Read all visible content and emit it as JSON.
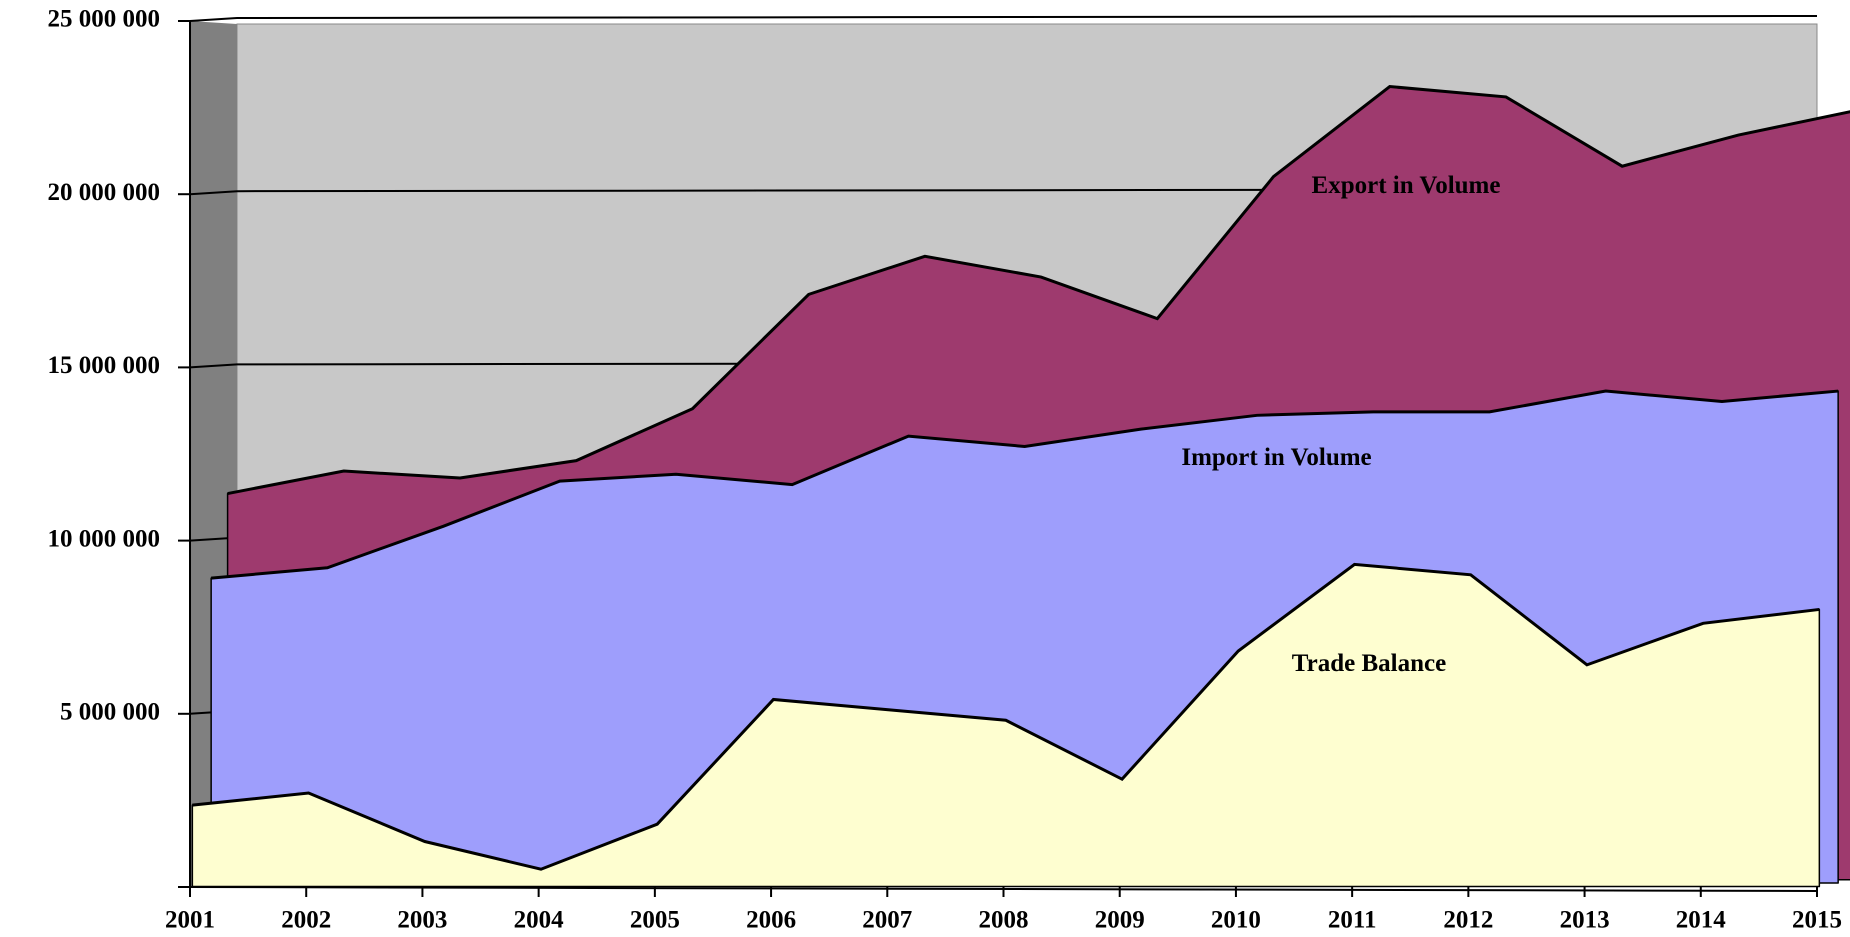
{
  "chart_data": {
    "type": "area3d",
    "categories": [
      "2001",
      "2002",
      "2003",
      "2004",
      "2005",
      "2006",
      "2007",
      "2008",
      "2009",
      "2010",
      "2011",
      "2012",
      "2013",
      "2014",
      "2015"
    ],
    "series": [
      {
        "name": "Export in Volume",
        "color": "#9e3a6e",
        "values": [
          11150000,
          11800000,
          11600000,
          12100000,
          13600000,
          16900000,
          18000000,
          17400000,
          16200000,
          20300000,
          22900000,
          22600000,
          20600000,
          21500000,
          22200000
        ]
      },
      {
        "name": "Import in Volume",
        "color": "#9e9efc",
        "values": [
          8800000,
          9100000,
          10300000,
          11600000,
          11800000,
          11500000,
          12900000,
          12600000,
          13100000,
          13500000,
          13600000,
          13600000,
          14200000,
          13900000,
          14200000
        ]
      },
      {
        "name": "Trade Balance",
        "color": "#fefed0",
        "values": [
          2350000,
          2700000,
          1300000,
          500000,
          1800000,
          5400000,
          5100000,
          4800000,
          3100000,
          6800000,
          9300000,
          9000000,
          6400000,
          7600000,
          8000000
        ]
      }
    ],
    "ylim": [
      0,
      25000000
    ],
    "yticks": [
      {
        "value": 0,
        "label": ""
      },
      {
        "value": 5000000,
        "label": "5 000 000"
      },
      {
        "value": 10000000,
        "label": "10 000 000"
      },
      {
        "value": 15000000,
        "label": "15 000 000"
      },
      {
        "value": 20000000,
        "label": "20 000 000"
      },
      {
        "value": 25000000,
        "label": "25 000 000"
      }
    ],
    "grid": true
  }
}
